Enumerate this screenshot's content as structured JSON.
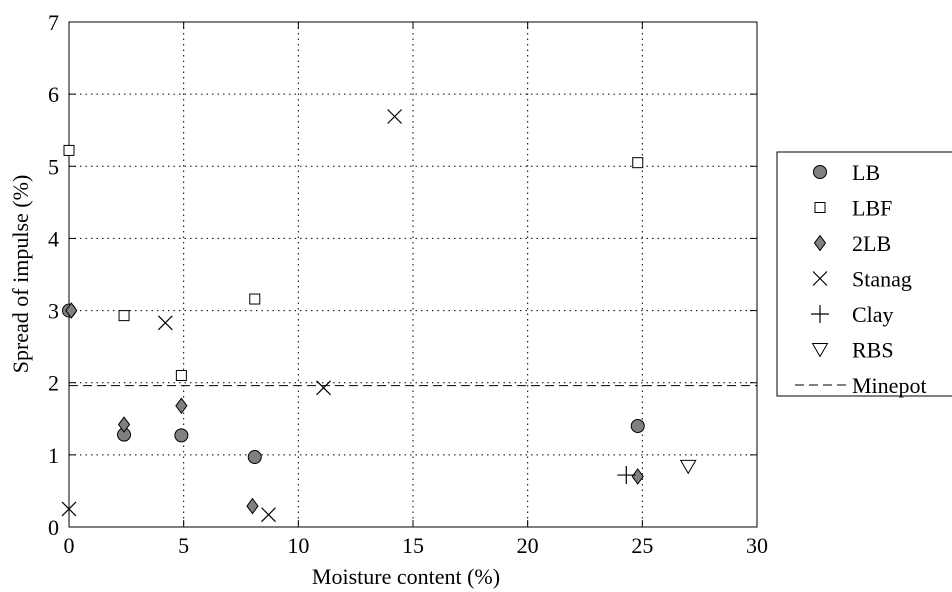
{
  "chart_data": {
    "type": "scatter",
    "xlabel": "Moisture content (%)",
    "ylabel": "Spread of impulse (%)",
    "xlim": [
      0,
      30
    ],
    "ylim": [
      0,
      7
    ],
    "xticks": [
      0,
      5,
      10,
      15,
      20,
      25,
      30
    ],
    "yticks": [
      0,
      1,
      2,
      3,
      4,
      5,
      6,
      7
    ],
    "grid": true,
    "legend_position": "right",
    "series": [
      {
        "name": "LB",
        "marker": "circle",
        "points": [
          [
            0,
            3.0
          ],
          [
            2.4,
            1.28
          ],
          [
            4.9,
            1.27
          ],
          [
            8.1,
            0.97
          ],
          [
            24.8,
            1.4
          ]
        ]
      },
      {
        "name": "LBF",
        "marker": "square",
        "points": [
          [
            0,
            5.22
          ],
          [
            2.4,
            2.93
          ],
          [
            4.9,
            2.1
          ],
          [
            8.1,
            3.16
          ],
          [
            24.8,
            5.05
          ]
        ]
      },
      {
        "name": "2LB",
        "marker": "diamond",
        "points": [
          [
            0.1,
            3.0
          ],
          [
            2.4,
            1.42
          ],
          [
            4.9,
            1.68
          ],
          [
            8.0,
            0.29
          ],
          [
            24.8,
            0.7
          ]
        ]
      },
      {
        "name": "Stanag",
        "marker": "x",
        "points": [
          [
            0,
            0.25
          ],
          [
            4.2,
            2.83
          ],
          [
            8.7,
            0.17
          ],
          [
            11.1,
            1.93
          ],
          [
            14.2,
            5.69
          ]
        ]
      },
      {
        "name": "Clay",
        "marker": "plus",
        "points": [
          [
            24.3,
            0.72
          ]
        ]
      },
      {
        "name": "RBS",
        "marker": "triangle-down",
        "points": [
          [
            27.0,
            0.84
          ]
        ]
      },
      {
        "name": "Minepot",
        "marker": "dashed-line",
        "y": 1.96
      }
    ]
  }
}
